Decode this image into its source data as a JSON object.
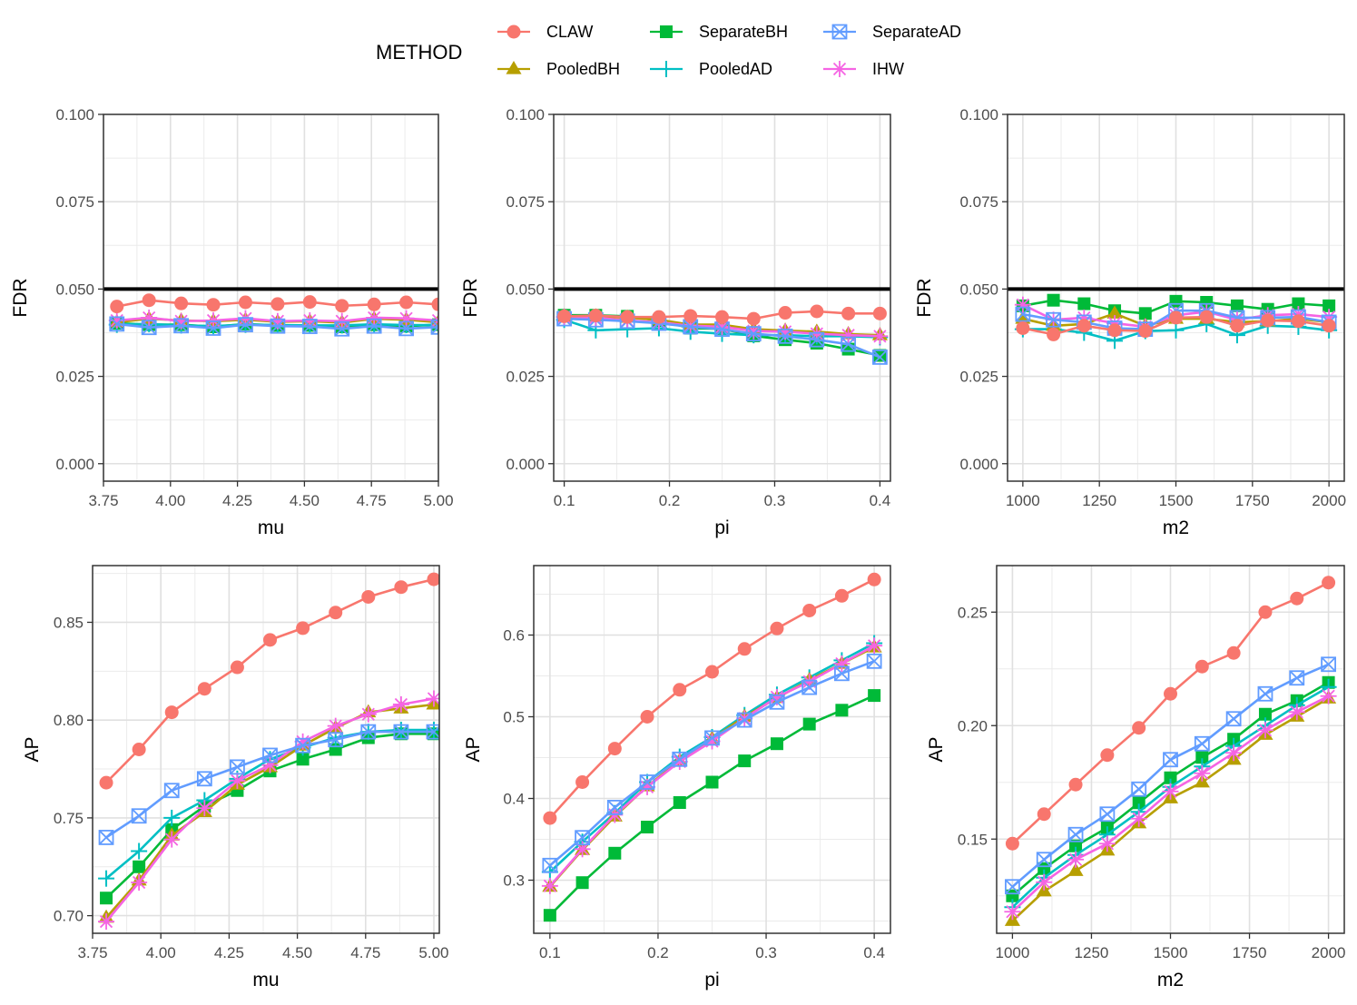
{
  "legend": {
    "title": "METHOD",
    "items": [
      {
        "name": "CLAW",
        "color": "#F8766D",
        "shape": "circle"
      },
      {
        "name": "PooledBH",
        "color": "#B79F00",
        "shape": "triangle"
      },
      {
        "name": "SeparateBH",
        "color": "#00BA38",
        "shape": "square"
      },
      {
        "name": "PooledAD",
        "color": "#00BFC4",
        "shape": "plus"
      },
      {
        "name": "SeparateAD",
        "color": "#619CFF",
        "shape": "boxcross"
      },
      {
        "name": "IHW",
        "color": "#F564E3",
        "shape": "asterisk"
      }
    ]
  },
  "chart_data": [
    {
      "type": "line",
      "panel": "top-left",
      "title": "",
      "xlabel": "mu",
      "ylabel": "FDR",
      "xlim": [
        3.75,
        5.0
      ],
      "ylim": [
        -0.005,
        0.1
      ],
      "xticks": [
        3.75,
        4.0,
        4.25,
        4.5,
        4.75,
        5.0
      ],
      "xtick_labels": [
        "3.75",
        "4.00",
        "4.25",
        "4.50",
        "4.75",
        "5.00"
      ],
      "yticks": [
        0.0,
        0.025,
        0.05,
        0.075,
        0.1
      ],
      "ytick_labels": [
        "0.000",
        "0.025",
        "0.050",
        "0.075",
        "0.100"
      ],
      "hline": 0.05,
      "x": [
        3.8,
        3.92,
        4.04,
        4.16,
        4.28,
        4.4,
        4.52,
        4.64,
        4.76,
        4.88,
        5.0
      ],
      "series": [
        {
          "name": "CLAW",
          "values": [
            0.045,
            0.0468,
            0.0459,
            0.0455,
            0.0462,
            0.0457,
            0.0463,
            0.0452,
            0.0456,
            0.0462,
            0.0456
          ]
        },
        {
          "name": "PooledBH",
          "values": [
            0.0405,
            0.0415,
            0.041,
            0.0408,
            0.0412,
            0.0406,
            0.0408,
            0.0404,
            0.0415,
            0.0412,
            0.0405
          ]
        },
        {
          "name": "SeparateBH",
          "values": [
            0.0402,
            0.0398,
            0.0398,
            0.0392,
            0.04,
            0.0396,
            0.0396,
            0.0392,
            0.0398,
            0.0394,
            0.0398
          ]
        },
        {
          "name": "PooledAD",
          "values": [
            0.0398,
            0.04,
            0.0396,
            0.0394,
            0.0398,
            0.0397,
            0.0396,
            0.0396,
            0.0399,
            0.0397,
            0.0397
          ]
        },
        {
          "name": "SeparateAD",
          "values": [
            0.04,
            0.039,
            0.0395,
            0.0388,
            0.0398,
            0.0394,
            0.0393,
            0.0386,
            0.0394,
            0.0387,
            0.0391
          ]
        },
        {
          "name": "IHW",
          "values": [
            0.041,
            0.0418,
            0.0408,
            0.041,
            0.0416,
            0.0408,
            0.041,
            0.0408,
            0.0418,
            0.0416,
            0.041
          ]
        }
      ]
    },
    {
      "type": "line",
      "panel": "top-middle",
      "title": "",
      "xlabel": "pi",
      "ylabel": "FDR",
      "xlim": [
        0.09,
        0.41
      ],
      "ylim": [
        -0.005,
        0.1
      ],
      "xticks": [
        0.1,
        0.2,
        0.3,
        0.4
      ],
      "xtick_labels": [
        "0.1",
        "0.2",
        "0.3",
        "0.4"
      ],
      "yticks": [
        0.0,
        0.025,
        0.05,
        0.075,
        0.1
      ],
      "ytick_labels": [
        "0.000",
        "0.025",
        "0.050",
        "0.075",
        "0.100"
      ],
      "hline": 0.05,
      "x": [
        0.1,
        0.13,
        0.16,
        0.19,
        0.22,
        0.25,
        0.28,
        0.31,
        0.34,
        0.37,
        0.4
      ],
      "series": [
        {
          "name": "CLAW",
          "values": [
            0.0422,
            0.0424,
            0.042,
            0.042,
            0.0423,
            0.042,
            0.0415,
            0.0432,
            0.0436,
            0.043,
            0.043
          ]
        },
        {
          "name": "PooledBH",
          "values": [
            0.0422,
            0.0422,
            0.0418,
            0.0412,
            0.0398,
            0.0398,
            0.0385,
            0.0381,
            0.0378,
            0.0371,
            0.0368
          ]
        },
        {
          "name": "SeparateBH",
          "values": [
            0.0425,
            0.0425,
            0.0422,
            0.041,
            0.0388,
            0.0386,
            0.0366,
            0.0355,
            0.0345,
            0.0328,
            0.031
          ]
        },
        {
          "name": "PooledAD",
          "values": [
            0.0412,
            0.0382,
            0.0385,
            0.0388,
            0.0378,
            0.0372,
            0.0368,
            0.0368,
            0.0365,
            0.0365,
            0.0362
          ]
        },
        {
          "name": "SeparateAD",
          "values": [
            0.0415,
            0.0412,
            0.0408,
            0.0402,
            0.0392,
            0.0385,
            0.0372,
            0.0365,
            0.0355,
            0.0342,
            0.0305
          ]
        },
        {
          "name": "IHW",
          "values": [
            0.042,
            0.0418,
            0.041,
            0.0405,
            0.0395,
            0.0392,
            0.038,
            0.0378,
            0.0372,
            0.0368,
            0.0365
          ]
        }
      ]
    },
    {
      "type": "line",
      "panel": "top-right",
      "title": "",
      "xlabel": "m2",
      "ylabel": "FDR",
      "xlim": [
        950,
        2050
      ],
      "ylim": [
        -0.005,
        0.1
      ],
      "xticks": [
        1000,
        1250,
        1500,
        1750,
        2000
      ],
      "xtick_labels": [
        "1000",
        "1250",
        "1500",
        "1750",
        "2000"
      ],
      "yticks": [
        0.0,
        0.025,
        0.05,
        0.075,
        0.1
      ],
      "ytick_labels": [
        "0.000",
        "0.025",
        "0.050",
        "0.075",
        "0.100"
      ],
      "hline": 0.05,
      "x": [
        1000,
        1100,
        1200,
        1300,
        1400,
        1500,
        1600,
        1700,
        1800,
        1900,
        2000
      ],
      "series": [
        {
          "name": "CLAW",
          "values": [
            0.0388,
            0.037,
            0.0395,
            0.0382,
            0.038,
            0.0418,
            0.042,
            0.0395,
            0.041,
            0.0408,
            0.0395
          ]
        },
        {
          "name": "PooledBH",
          "values": [
            0.0415,
            0.0395,
            0.04,
            0.043,
            0.0395,
            0.0415,
            0.0415,
            0.0405,
            0.0408,
            0.0415,
            0.0405
          ]
        },
        {
          "name": "SeparateBH",
          "values": [
            0.0452,
            0.0468,
            0.0458,
            0.0438,
            0.043,
            0.0465,
            0.0462,
            0.0452,
            0.0442,
            0.0458,
            0.0452
          ]
        },
        {
          "name": "PooledAD",
          "values": [
            0.0385,
            0.0385,
            0.0375,
            0.0352,
            0.038,
            0.0382,
            0.04,
            0.0368,
            0.0395,
            0.0392,
            0.0382
          ]
        },
        {
          "name": "SeparateAD",
          "values": [
            0.0428,
            0.0412,
            0.0405,
            0.0388,
            0.0385,
            0.0438,
            0.0438,
            0.0418,
            0.0418,
            0.042,
            0.0405
          ]
        },
        {
          "name": "IHW",
          "values": [
            0.0455,
            0.0412,
            0.0418,
            0.0402,
            0.0392,
            0.0425,
            0.0435,
            0.0412,
            0.0425,
            0.0428,
            0.042
          ]
        }
      ]
    },
    {
      "type": "line",
      "panel": "bottom-left",
      "title": "",
      "xlabel": "mu",
      "ylabel": "AP",
      "xlim": [
        3.75,
        5.02
      ],
      "ylim": [
        0.691,
        0.879
      ],
      "xticks": [
        3.75,
        4.0,
        4.25,
        4.5,
        4.75,
        5.0
      ],
      "xtick_labels": [
        "3.75",
        "4.00",
        "4.25",
        "4.50",
        "4.75",
        "5.00"
      ],
      "yticks": [
        0.7,
        0.75,
        0.8,
        0.85
      ],
      "ytick_labels": [
        "0.70",
        "0.75",
        "0.80",
        "0.85"
      ],
      "x": [
        3.8,
        3.92,
        4.04,
        4.16,
        4.28,
        4.4,
        4.52,
        4.64,
        4.76,
        4.88,
        5.0
      ],
      "series": [
        {
          "name": "CLAW",
          "values": [
            0.768,
            0.785,
            0.804,
            0.816,
            0.827,
            0.841,
            0.847,
            0.855,
            0.863,
            0.868,
            0.872
          ]
        },
        {
          "name": "PooledBH",
          "values": [
            0.699,
            0.718,
            0.741,
            0.753,
            0.767,
            0.776,
            0.787,
            0.796,
            0.804,
            0.806,
            0.808
          ]
        },
        {
          "name": "SeparateBH",
          "values": [
            0.709,
            0.725,
            0.744,
            0.756,
            0.764,
            0.774,
            0.78,
            0.785,
            0.791,
            0.793,
            0.793
          ]
        },
        {
          "name": "PooledAD",
          "values": [
            0.719,
            0.733,
            0.75,
            0.759,
            0.77,
            0.78,
            0.786,
            0.791,
            0.794,
            0.795,
            0.795
          ]
        },
        {
          "name": "SeparateAD",
          "values": [
            0.74,
            0.751,
            0.764,
            0.77,
            0.776,
            0.782,
            0.787,
            0.79,
            0.794,
            0.794,
            0.794
          ]
        },
        {
          "name": "IHW",
          "values": [
            0.697,
            0.717,
            0.739,
            0.755,
            0.769,
            0.777,
            0.789,
            0.797,
            0.803,
            0.808,
            0.811
          ]
        }
      ]
    },
    {
      "type": "line",
      "panel": "bottom-middle",
      "title": "",
      "xlabel": "pi",
      "ylabel": "AP",
      "xlim": [
        0.085,
        0.415
      ],
      "ylim": [
        0.235,
        0.685
      ],
      "xticks": [
        0.1,
        0.2,
        0.3,
        0.4
      ],
      "xtick_labels": [
        "0.1",
        "0.2",
        "0.3",
        "0.4"
      ],
      "yticks": [
        0.3,
        0.4,
        0.5,
        0.6
      ],
      "ytick_labels": [
        "0.3",
        "0.4",
        "0.5",
        "0.6"
      ],
      "x": [
        0.1,
        0.13,
        0.16,
        0.19,
        0.22,
        0.25,
        0.28,
        0.31,
        0.34,
        0.37,
        0.4
      ],
      "series": [
        {
          "name": "CLAW",
          "values": [
            0.376,
            0.42,
            0.461,
            0.5,
            0.533,
            0.555,
            0.583,
            0.608,
            0.63,
            0.648,
            0.668
          ]
        },
        {
          "name": "PooledBH",
          "values": [
            0.292,
            0.337,
            0.378,
            0.415,
            0.446,
            0.473,
            0.5,
            0.523,
            0.545,
            0.565,
            0.585
          ]
        },
        {
          "name": "SeparateBH",
          "values": [
            0.257,
            0.297,
            0.333,
            0.365,
            0.395,
            0.42,
            0.446,
            0.467,
            0.491,
            0.508,
            0.526
          ]
        },
        {
          "name": "PooledAD",
          "values": [
            0.31,
            0.347,
            0.382,
            0.42,
            0.451,
            0.475,
            0.502,
            0.527,
            0.548,
            0.569,
            0.59
          ]
        },
        {
          "name": "SeparateAD",
          "values": [
            0.318,
            0.352,
            0.389,
            0.42,
            0.448,
            0.474,
            0.496,
            0.518,
            0.536,
            0.553,
            0.568
          ]
        },
        {
          "name": "IHW",
          "values": [
            0.293,
            0.338,
            0.38,
            0.414,
            0.445,
            0.47,
            0.498,
            0.524,
            0.543,
            0.565,
            0.587
          ]
        }
      ]
    },
    {
      "type": "line",
      "panel": "bottom-right",
      "title": "",
      "xlabel": "m2",
      "ylabel": "AP",
      "xlim": [
        950,
        2050
      ],
      "ylim": [
        0.1085,
        0.2705
      ],
      "xticks": [
        1000,
        1250,
        1500,
        1750,
        2000
      ],
      "xtick_labels": [
        "1000",
        "1250",
        "1500",
        "1750",
        "2000"
      ],
      "yticks": [
        0.15,
        0.2,
        0.25
      ],
      "ytick_labels": [
        "0.15",
        "0.20",
        "0.25"
      ],
      "x": [
        1000,
        1100,
        1200,
        1300,
        1400,
        1500,
        1600,
        1700,
        1800,
        1900,
        2000
      ],
      "series": [
        {
          "name": "CLAW",
          "values": [
            0.148,
            0.161,
            0.174,
            0.187,
            0.199,
            0.214,
            0.226,
            0.232,
            0.25,
            0.256,
            0.263
          ]
        },
        {
          "name": "PooledBH",
          "values": [
            0.114,
            0.127,
            0.136,
            0.145,
            0.157,
            0.168,
            0.175,
            0.185,
            0.196,
            0.204,
            0.212
          ]
        },
        {
          "name": "SeparateBH",
          "values": [
            0.125,
            0.137,
            0.147,
            0.155,
            0.166,
            0.177,
            0.186,
            0.194,
            0.205,
            0.211,
            0.219
          ]
        },
        {
          "name": "PooledAD",
          "values": [
            0.12,
            0.133,
            0.143,
            0.152,
            0.162,
            0.173,
            0.182,
            0.191,
            0.2,
            0.209,
            0.217
          ]
        },
        {
          "name": "SeparateAD",
          "values": [
            0.129,
            0.141,
            0.152,
            0.161,
            0.172,
            0.185,
            0.192,
            0.203,
            0.214,
            0.221,
            0.227
          ]
        },
        {
          "name": "IHW",
          "values": [
            0.118,
            0.131,
            0.141,
            0.148,
            0.159,
            0.171,
            0.179,
            0.188,
            0.198,
            0.206,
            0.213
          ]
        }
      ]
    }
  ]
}
